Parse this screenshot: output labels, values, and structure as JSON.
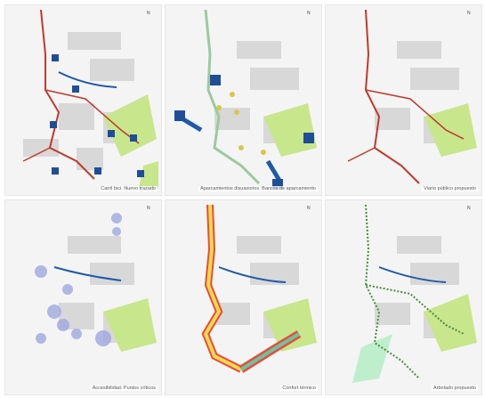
{
  "panels": [
    {
      "caption": "Carril bici. Nuevo trazado"
    },
    {
      "caption": "Aparcamientos disuasorios. Bancos de aparcamiento"
    },
    {
      "caption": "Viario público propuesto"
    },
    {
      "caption": "Accesibilidad. Puntos críticos"
    },
    {
      "caption": "Confort térmico"
    },
    {
      "caption": "Arbolado propuesto"
    }
  ],
  "north_label": "N",
  "parking_symbol": "P",
  "colors": {
    "background": "#f4f4f4",
    "buildings": "#d9d9d9",
    "green": "#c8e68c",
    "bike_lane": "#c0392b",
    "parking_blue": "#1f4e99",
    "river": "#1f5ba8",
    "trees": "#4c8c3a",
    "accessibility": "#9fa8e0"
  }
}
